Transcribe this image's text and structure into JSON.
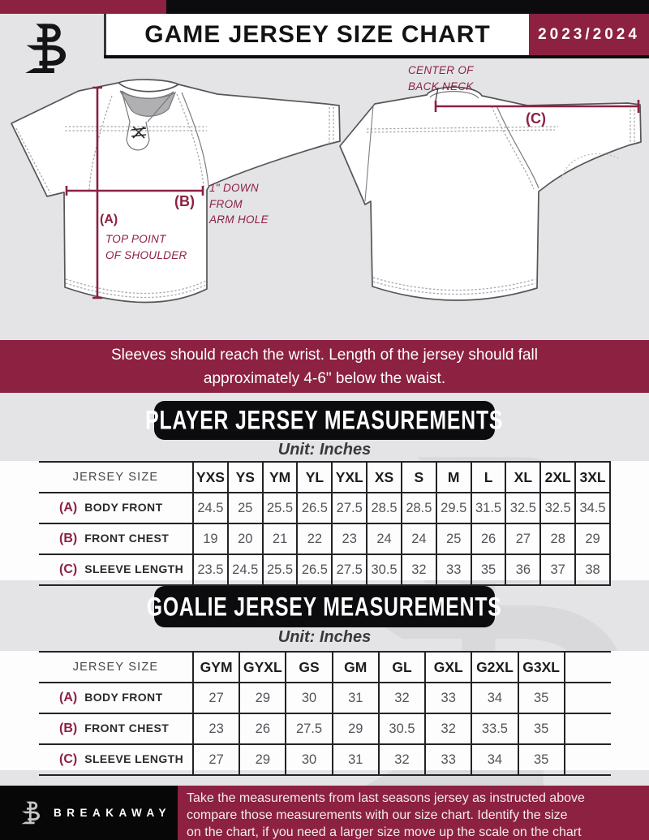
{
  "colors": {
    "maroon": "#8c2142",
    "black": "#0c0c0e",
    "bg_gray": "#e4e4e6"
  },
  "header": {
    "title": "GAME JERSEY SIZE CHART",
    "season": "2023/2024"
  },
  "diagram": {
    "front": {
      "a_label": "(A)",
      "b_label": "(B)",
      "shoulder_note": "TOP POINT\nOF SHOULDER",
      "armhole_note": "1\" DOWN\nFROM\nARM HOLE"
    },
    "back": {
      "c_label": "(C)",
      "neck_note": "CENTER OF\nBACK NECK"
    }
  },
  "banner": {
    "text": "Sleeves should reach the wrist. Length of the jersey should fall\napproximately 4-6\" below the waist."
  },
  "player_table": {
    "title": "PLAYER JERSEY MEASUREMENTS",
    "unit": "Unit: Inches",
    "size_header": "JERSEY SIZE",
    "sizes": [
      "YXS",
      "YS",
      "YM",
      "YL",
      "YXL",
      "XS",
      "S",
      "M",
      "L",
      "XL",
      "2XL",
      "3XL"
    ],
    "rows": [
      {
        "key": "(A)",
        "label": "BODY FRONT",
        "values": [
          "24.5",
          "25",
          "25.5",
          "26.5",
          "27.5",
          "28.5",
          "28.5",
          "29.5",
          "31.5",
          "32.5",
          "32.5",
          "34.5"
        ]
      },
      {
        "key": "(B)",
        "label": "FRONT CHEST",
        "values": [
          "19",
          "20",
          "21",
          "22",
          "23",
          "24",
          "24",
          "25",
          "26",
          "27",
          "28",
          "29"
        ]
      },
      {
        "key": "(C)",
        "label": "SLEEVE LENGTH",
        "values": [
          "23.5",
          "24.5",
          "25.5",
          "26.5",
          "27.5",
          "30.5",
          "32",
          "33",
          "35",
          "36",
          "37",
          "38"
        ]
      }
    ]
  },
  "goalie_table": {
    "title": "GOALIE JERSEY MEASUREMENTS",
    "unit": "Unit: Inches",
    "size_header": "JERSEY SIZE",
    "sizes": [
      "GYM",
      "GYXL",
      "GS",
      "GM",
      "GL",
      "GXL",
      "G2XL",
      "G3XL",
      ""
    ],
    "rows": [
      {
        "key": "(A)",
        "label": "BODY FRONT",
        "values": [
          "27",
          "29",
          "30",
          "31",
          "32",
          "33",
          "34",
          "35",
          ""
        ]
      },
      {
        "key": "(B)",
        "label": "FRONT CHEST",
        "values": [
          "23",
          "26",
          "27.5",
          "29",
          "30.5",
          "32",
          "33.5",
          "35",
          ""
        ]
      },
      {
        "key": "(C)",
        "label": "SLEEVE LENGTH",
        "values": [
          "27",
          "29",
          "30",
          "31",
          "32",
          "33",
          "34",
          "35",
          ""
        ]
      }
    ]
  },
  "footer": {
    "brand": "BREAKAWAY",
    "note": "Take the measurements from last seasons jersey as instructed above\ncompare those measurements  with our size chart. Identify the size\non the chart, if you need a larger size move up the scale on the chart"
  }
}
